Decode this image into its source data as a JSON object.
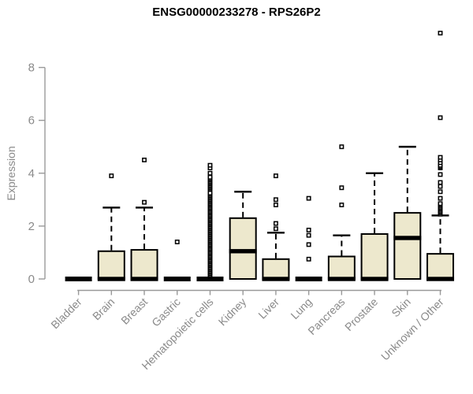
{
  "chart_data": {
    "type": "boxplot",
    "title": "ENSG00000233278 - RPS26P2",
    "ylabel": "Expression",
    "yticks": [
      0,
      2,
      4,
      6,
      8
    ],
    "ylim": [
      0,
      8
    ],
    "grid": false,
    "legend": "none",
    "colors": {
      "box_fill": "#EDE8CD",
      "box_stroke": "#000000",
      "median": "#000000",
      "axis_line": "#999999",
      "tick_text": "#8a8a8a",
      "title_text": "#000000"
    },
    "categories": [
      "Bladder",
      "Brain",
      "Breast",
      "Gastric",
      "Hematopoietic cells",
      "Kidney",
      "Liver",
      "Lung",
      "Pancreas",
      "Prostate",
      "Skin",
      "Unknown / Other"
    ],
    "boxes": [
      {
        "category": "Bladder",
        "q1": 0,
        "median": 0,
        "q3": 0,
        "whisker_low": 0,
        "whisker_high": 0,
        "outliers": []
      },
      {
        "category": "Brain",
        "q1": 0,
        "median": 0,
        "q3": 1.05,
        "whisker_low": 0,
        "whisker_high": 2.7,
        "outliers": [
          3.9
        ]
      },
      {
        "category": "Breast",
        "q1": 0,
        "median": 0,
        "q3": 1.1,
        "whisker_low": 0,
        "whisker_high": 2.7,
        "outliers": [
          2.9,
          4.5
        ]
      },
      {
        "category": "Gastric",
        "q1": 0,
        "median": 0,
        "q3": 0,
        "whisker_low": 0,
        "whisker_high": 0,
        "outliers": [
          1.4
        ]
      },
      {
        "category": "Hematopoietic cells",
        "q1": 0,
        "median": 0,
        "q3": 0,
        "whisker_low": 0,
        "whisker_high": 0,
        "outliers": [
          0.15,
          0.2,
          0.25,
          0.3,
          0.35,
          0.4,
          0.45,
          0.5,
          0.55,
          0.6,
          0.65,
          0.7,
          0.75,
          0.8,
          0.85,
          0.9,
          0.95,
          1.0,
          1.05,
          1.1,
          1.15,
          1.2,
          1.25,
          1.3,
          1.35,
          1.4,
          1.45,
          1.5,
          1.55,
          1.6,
          1.65,
          1.7,
          1.75,
          1.8,
          1.85,
          1.9,
          1.95,
          2.0,
          2.05,
          2.1,
          2.15,
          2.2,
          2.25,
          2.3,
          2.35,
          2.4,
          2.45,
          2.5,
          2.55,
          2.6,
          2.65,
          2.7,
          2.75,
          2.8,
          2.85,
          2.9,
          2.95,
          3.0,
          3.05,
          3.1,
          3.15,
          3.2,
          3.25,
          3.4,
          3.45,
          3.5,
          3.55,
          3.6,
          3.65,
          3.7,
          3.75,
          3.8,
          3.85,
          4.0,
          4.2,
          4.3
        ]
      },
      {
        "category": "Kidney",
        "q1": 0,
        "median": 1.05,
        "q3": 2.3,
        "whisker_low": 0,
        "whisker_high": 3.3,
        "outliers": []
      },
      {
        "category": "Liver",
        "q1": 0,
        "median": 0,
        "q3": 0.75,
        "whisker_low": 0,
        "whisker_high": 1.75,
        "outliers": [
          1.9,
          2.1,
          2.8,
          3.0,
          3.9
        ]
      },
      {
        "category": "Lung",
        "q1": 0,
        "median": 0,
        "q3": 0,
        "whisker_low": 0,
        "whisker_high": 0,
        "outliers": [
          0.75,
          1.3,
          1.65,
          1.85,
          3.05
        ]
      },
      {
        "category": "Pancreas",
        "q1": 0,
        "median": 0,
        "q3": 0.85,
        "whisker_low": 0,
        "whisker_high": 1.65,
        "outliers": [
          2.8,
          3.45,
          5.0
        ]
      },
      {
        "category": "Prostate",
        "q1": 0,
        "median": 0,
        "q3": 1.7,
        "whisker_low": 0,
        "whisker_high": 4.0,
        "outliers": []
      },
      {
        "category": "Skin",
        "q1": 0,
        "median": 1.55,
        "q3": 2.5,
        "whisker_low": 0,
        "whisker_high": 5.0,
        "outliers": []
      },
      {
        "category": "Unknown / Other",
        "q1": 0,
        "median": 0,
        "q3": 0.95,
        "whisker_low": 0,
        "whisker_high": 2.4,
        "outliers": [
          2.45,
          2.5,
          2.55,
          2.6,
          2.65,
          2.7,
          2.75,
          2.8,
          2.85,
          3.05,
          3.3,
          3.5,
          3.65,
          3.95,
          4.2,
          4.25,
          4.3,
          4.4,
          4.5,
          4.6,
          6.1,
          9.3
        ]
      }
    ]
  }
}
